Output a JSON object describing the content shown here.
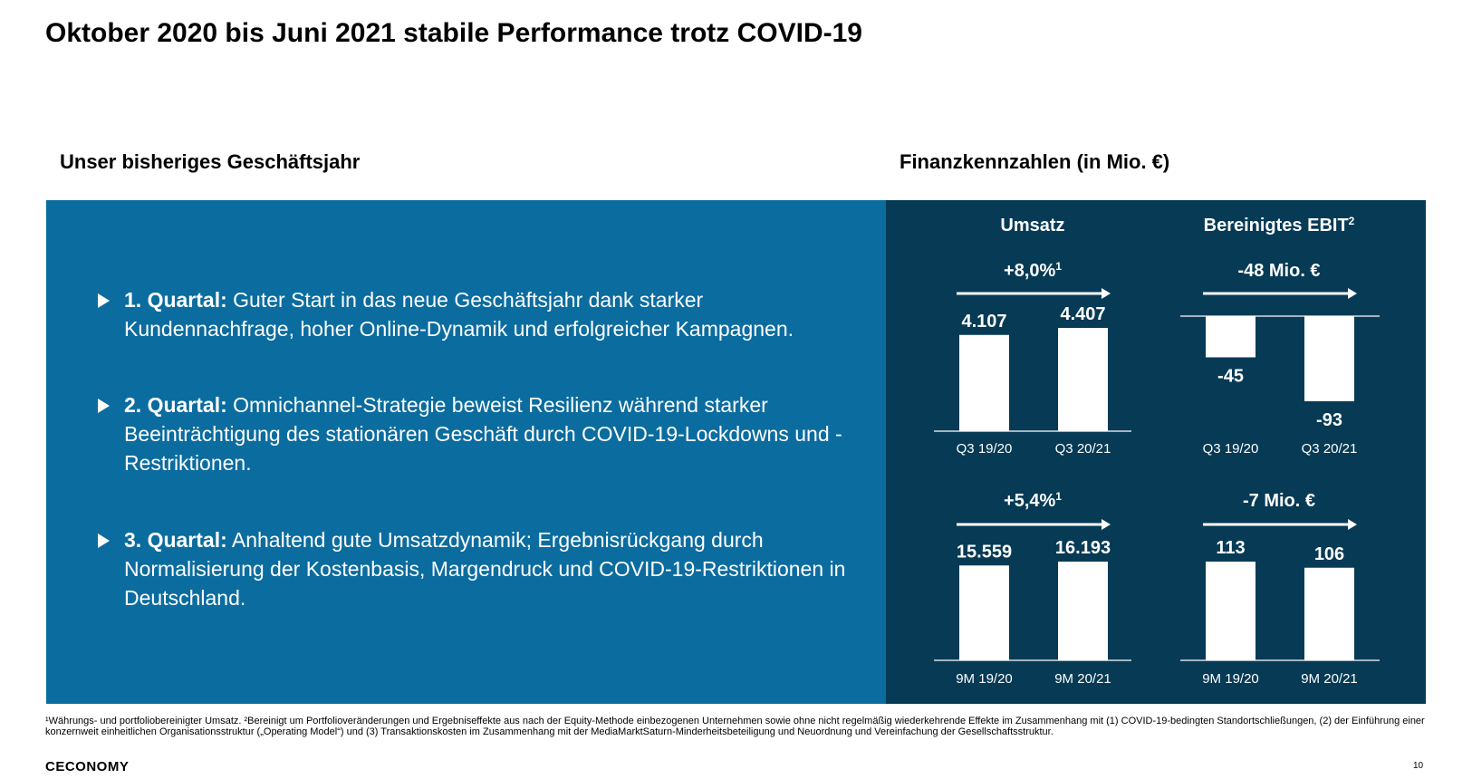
{
  "title": "Oktober 2020 bis Juni 2021 stabile Performance trotz COVID-19",
  "left_heading": "Unser bisheriges Geschäftsjahr",
  "right_heading": "Finanzkennzahlen (in Mio. €)",
  "bullets": [
    {
      "label": "1. Quartal:",
      "text": " Guter Start in das neue Geschäftsjahr dank starker Kundennachfrage, hoher Online-Dynamik und erfolgreicher Kampagnen."
    },
    {
      "label": "2. Quartal:",
      "text": " Omnichannel-Strategie beweist Resilienz während starker Beeinträchtigung des stationären Geschäft durch COVID-19-Lockdowns und -Restriktionen."
    },
    {
      "label": "3. Quartal:",
      "text": " Anhaltend gute Umsatzdynamik; Ergebnisrückgang durch Normalisierung der Kostenbasis, Margendruck und COVID-19-Restriktionen in Deutschland."
    }
  ],
  "colors": {
    "blue_panel": "#0b6c9f",
    "dark_panel": "#063a55",
    "bar": "#ffffff"
  },
  "chart_data": [
    {
      "type": "bar",
      "title": "Umsatz",
      "change": "+8,0%",
      "change_footnote": "1",
      "categories": [
        "Q3 19/20",
        "Q3 20/21"
      ],
      "values": [
        4107,
        4407
      ],
      "labels": [
        "4.107",
        "4.407"
      ]
    },
    {
      "type": "bar",
      "title": "Bereinigtes EBIT",
      "title_footnote": "2",
      "change": "-48 Mio. €",
      "categories": [
        "Q3 19/20",
        "Q3 20/21"
      ],
      "values": [
        -45,
        -93
      ],
      "labels": [
        "-45",
        "-93"
      ]
    },
    {
      "type": "bar",
      "change": "+5,4%",
      "change_footnote": "1",
      "categories": [
        "9M 19/20",
        "9M 20/21"
      ],
      "values": [
        15559,
        16193
      ],
      "labels": [
        "15.559",
        "16.193"
      ]
    },
    {
      "type": "bar",
      "change": "-7 Mio. €",
      "categories": [
        "9M 19/20",
        "9M 20/21"
      ],
      "values": [
        113,
        106
      ],
      "labels": [
        "113",
        "106"
      ]
    }
  ],
  "footnote": "¹Währungs- und portfoliobereinigter Umsatz. ²Bereinigt um Portfolioveränderungen und Ergebniseffekte aus nach der Equity-Methode einbezogenen Unternehmen sowie ohne nicht regelmäßig wiederkehrende Effekte im Zusammenhang mit (1) COVID-19-bedingten Standortschließungen, (2) der Einführung einer konzernweit einheitlichen Organisationsstruktur („Operating Model“) und (3) Transaktionskosten im Zusammenhang mit der MediaMarktSaturn-Minderheitsbeteiligung und Neuordnung und Vereinfachung der Gesellschaftsstruktur.",
  "logo": "CECONOMY",
  "page_number": "10"
}
